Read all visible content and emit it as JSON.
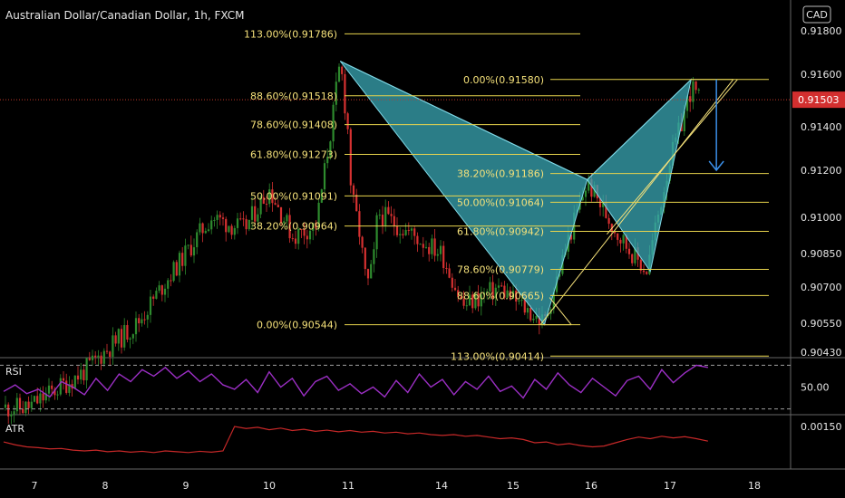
{
  "header": {
    "symbol_title": "Australian Dollar/Canadian Dollar, 1h, FXCM",
    "currency_badge": "CAD"
  },
  "colors": {
    "background": "#000000",
    "fib_line": "#e8d44d",
    "fib_text": "#f5e17a",
    "harmonic_fill": "#3aa7b4",
    "channel_line": "#f5e17a",
    "target_arrow": "#3b8fe8",
    "bull_candle": "#2e8b2e",
    "bear_candle": "#d63131",
    "price_line": "#c0392b",
    "price_tag_bg": "#d32f2f",
    "rsi_line": "#9b2fc4",
    "atr_line": "#c62828",
    "grid_line": "#666666"
  },
  "chart_data": [
    {
      "type": "candlestick",
      "title": "Australian Dollar/Canadian Dollar, 1h, FXCM",
      "x_ticks": [
        "7",
        "8",
        "9",
        "10",
        "11",
        "14",
        "15",
        "16",
        "17",
        "18"
      ],
      "y_ticks": [
        "0.91800",
        "0.91600",
        "0.91400",
        "0.91200",
        "0.91000",
        "0.90850",
        "0.90700",
        "0.90550",
        "0.90430"
      ],
      "ylim": [
        0.9042,
        0.9186
      ],
      "last_price": "0.91503",
      "close_path": [
        {
          "day": 6.9,
          "price": 0.902
        },
        {
          "day": 7.7,
          "price": 0.9035
        },
        {
          "day": 8.4,
          "price": 0.9055
        },
        {
          "day": 8.9,
          "price": 0.908
        },
        {
          "day": 9.3,
          "price": 0.91
        },
        {
          "day": 9.7,
          "price": 0.9095
        },
        {
          "day": 10.0,
          "price": 0.9112
        },
        {
          "day": 10.3,
          "price": 0.9092
        },
        {
          "day": 10.6,
          "price": 0.9097
        },
        {
          "day": 10.9,
          "price": 0.9165
        },
        {
          "day": 11.1,
          "price": 0.911
        },
        {
          "day": 11.35,
          "price": 0.9095
        },
        {
          "day": 11.6,
          "price": 0.907
        },
        {
          "day": 11.8,
          "price": 0.908
        },
        {
          "day": 11.95,
          "price": 0.9102
        },
        {
          "day": 14.0,
          "price": 0.9085
        },
        {
          "day": 14.3,
          "price": 0.9062
        },
        {
          "day": 14.8,
          "price": 0.907
        },
        {
          "day": 15.4,
          "price": 0.9055
        },
        {
          "day": 15.7,
          "price": 0.909
        },
        {
          "day": 15.95,
          "price": 0.9115
        },
        {
          "day": 16.3,
          "price": 0.9095
        },
        {
          "day": 16.7,
          "price": 0.9077
        },
        {
          "day": 17.0,
          "price": 0.9125
        },
        {
          "day": 17.25,
          "price": 0.9155
        },
        {
          "day": 17.35,
          "price": 0.915
        }
      ],
      "fib_levels_left": [
        {
          "label": "113.00%(0.91786)",
          "price": 0.91786
        },
        {
          "label": "88.60%(0.91518)",
          "price": 0.91518
        },
        {
          "label": "78.60%(0.91408)",
          "price": 0.91408
        },
        {
          "label": "61.80%(0.91273)",
          "price": 0.91273
        },
        {
          "label": "50.00%(0.91091)",
          "price": 0.91091
        },
        {
          "label": "38.20%(0.90964)",
          "price": 0.90964
        },
        {
          "label": "0.00%(0.90544)",
          "price": 0.90544
        }
      ],
      "fib_levels_right": [
        {
          "label": "0.00%(0.91580)",
          "price": 0.9158
        },
        {
          "label": "38.20%(0.91186)",
          "price": 0.91186
        },
        {
          "label": "50.00%(0.91064)",
          "price": 0.91064
        },
        {
          "label": "61.80%(0.90942)",
          "price": 0.90942
        },
        {
          "label": "78.60%(0.90779)",
          "price": 0.90779
        },
        {
          "label": "88.60%(0.90665)",
          "price": 0.90665
        },
        {
          "label": "113.00%(0.90414)",
          "price": 0.90414
        }
      ],
      "harmonic_pattern": {
        "X": {
          "day": 10.9,
          "price": 0.9166
        },
        "A": {
          "day": 15.4,
          "price": 0.90544
        },
        "B": {
          "day": 15.95,
          "price": 0.9116
        },
        "C": {
          "day": 16.75,
          "price": 0.9077
        },
        "D": {
          "day": 17.25,
          "price": 0.9158
        }
      },
      "target_arrow": {
        "day": 17.55,
        "from_price": 0.9158,
        "to_price": 0.912
      }
    },
    {
      "type": "line",
      "title": "RSI",
      "y_ticks": [
        "50.00"
      ],
      "ylim": [
        28,
        72
      ],
      "levels": [
        70,
        30
      ],
      "values": [
        46,
        52,
        44,
        48,
        41,
        55,
        50,
        43,
        58,
        47,
        62,
        55,
        66,
        60,
        68,
        58,
        65,
        55,
        62,
        52,
        48,
        57,
        45,
        64,
        50,
        58,
        42,
        55,
        60,
        47,
        53,
        44,
        50,
        41,
        56,
        45,
        62,
        50,
        57,
        43,
        55,
        48,
        60,
        46,
        51,
        40,
        57,
        48,
        63,
        52,
        45,
        58,
        50,
        42,
        56,
        60,
        48,
        66,
        54,
        63,
        70,
        68
      ]
    },
    {
      "type": "line",
      "title": "ATR",
      "y_ticks": [
        "0.00150"
      ],
      "ylim": [
        0.0005,
        0.0017
      ],
      "values": [
        0.00112,
        0.00105,
        0.001,
        0.00098,
        0.00095,
        0.00096,
        0.00092,
        0.0009,
        0.00092,
        0.00088,
        0.0009,
        0.00087,
        0.00089,
        0.00086,
        0.0009,
        0.00088,
        0.00086,
        0.00089,
        0.00087,
        0.0009,
        0.0015,
        0.00145,
        0.00148,
        0.00142,
        0.00146,
        0.0014,
        0.00143,
        0.00138,
        0.00141,
        0.00137,
        0.0014,
        0.00136,
        0.00138,
        0.00134,
        0.00136,
        0.00132,
        0.00134,
        0.0013,
        0.00128,
        0.0013,
        0.00126,
        0.00128,
        0.00124,
        0.0012,
        0.00122,
        0.00118,
        0.0011,
        0.00112,
        0.00105,
        0.00108,
        0.00103,
        0.001,
        0.00102,
        0.0011,
        0.00118,
        0.00124,
        0.0012,
        0.00126,
        0.00122,
        0.00125,
        0.0012,
        0.00114
      ]
    }
  ]
}
